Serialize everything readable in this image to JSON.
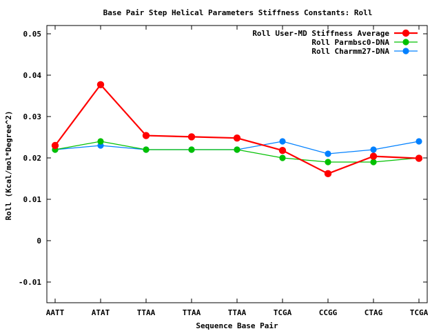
{
  "chart_data": {
    "type": "line",
    "title": "Base Pair Step Helical Parameters Stiffness Constants: Roll",
    "xlabel": "Sequence Base Pair",
    "ylabel": "Roll (Kcal/mol*Degree^2)",
    "categories": [
      "AATT",
      "ATAT",
      "TTAA",
      "TTAA",
      "TTAA",
      "TCGA",
      "CCGG",
      "CTAG",
      "TCGA"
    ],
    "ylim": [
      -0.015,
      0.052
    ],
    "yticks": [
      -0.01,
      0,
      0.01,
      0.02,
      0.03,
      0.04,
      0.05
    ],
    "ytick_labels": [
      "-0.01",
      "0",
      "0.01",
      "0.02",
      "0.03",
      "0.04",
      "0.05"
    ],
    "grid": false,
    "legend_position": "top-right",
    "series": [
      {
        "name": "Roll User-MD Stiffness Average",
        "color": "#ff0000",
        "values": [
          0.023,
          0.0377,
          0.0254,
          0.0251,
          0.0248,
          0.0218,
          0.0162,
          0.0204,
          0.0199
        ]
      },
      {
        "name": "Roll Parmbsc0-DNA",
        "color": "#00c000",
        "values": [
          0.022,
          0.024,
          0.022,
          0.022,
          0.022,
          0.02,
          0.019,
          0.019,
          0.02
        ]
      },
      {
        "name": "Roll Charmm27-DNA",
        "color": "#0080ff",
        "values": [
          0.022,
          0.023,
          0.022,
          0.022,
          0.022,
          0.024,
          0.021,
          0.022,
          0.024
        ]
      }
    ]
  }
}
